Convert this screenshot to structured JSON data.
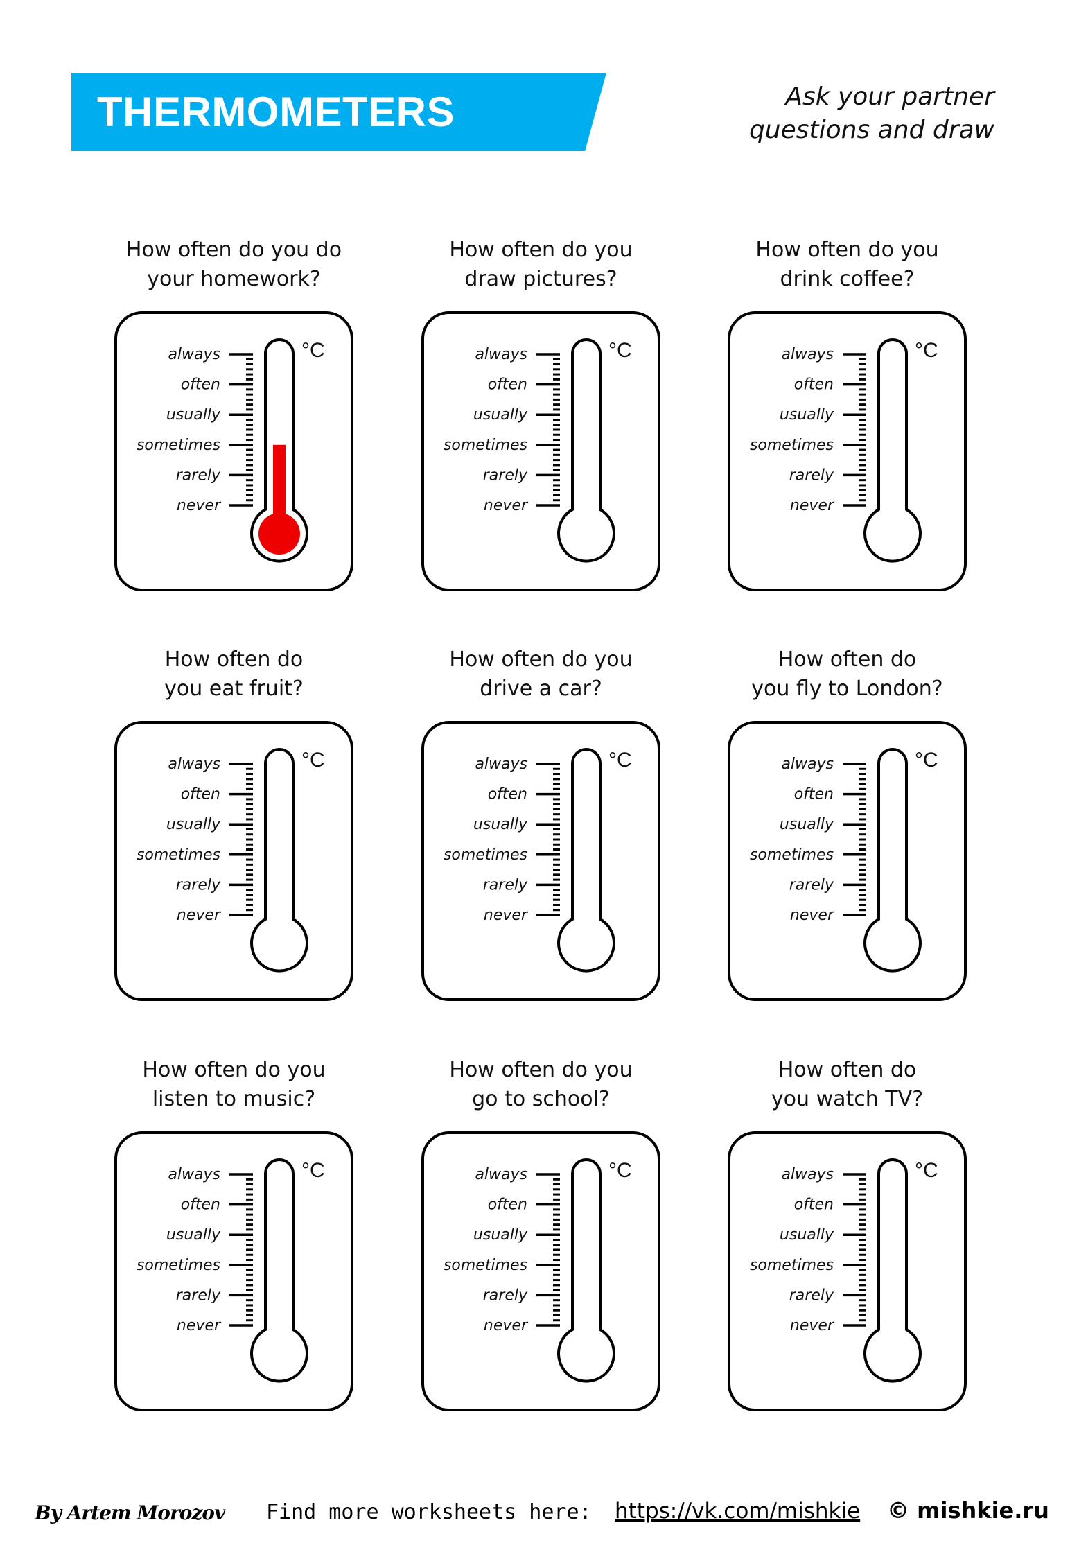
{
  "header": {
    "title": "THERMOMETERS",
    "instruction_line1": "Ask your partner",
    "instruction_line2": "questions and draw",
    "banner_color": "#00aeef"
  },
  "scale": {
    "unit": "°C",
    "levels": [
      "always",
      "often",
      "usually",
      "sometimes",
      "rarely",
      "never"
    ]
  },
  "fill_color": "#ee0000",
  "cards": [
    {
      "line1": "How often do you do",
      "line2": "your homework?",
      "fill_level": "sometimes"
    },
    {
      "line1": "How often do you",
      "line2": "draw pictures?",
      "fill_level": null
    },
    {
      "line1": "How often do you",
      "line2": "drink coffee?",
      "fill_level": null
    },
    {
      "line1": "How often do",
      "line2": "you eat fruit?",
      "fill_level": null
    },
    {
      "line1": "How often do you",
      "line2": "drive a car?",
      "fill_level": null
    },
    {
      "line1": "How often do",
      "line2": "you fly to London?",
      "fill_level": null
    },
    {
      "line1": "How often do you",
      "line2": "listen to music?",
      "fill_level": null
    },
    {
      "line1": "How often do you",
      "line2": "go to school?",
      "fill_level": null
    },
    {
      "line1": "How often do",
      "line2": "you watch TV?",
      "fill_level": null
    }
  ],
  "footer": {
    "author": "By Artem Morozov",
    "find_more": "Find more worksheets here:",
    "link": "https://vk.com/mishkie",
    "copyright": "© mishkie.ru"
  }
}
